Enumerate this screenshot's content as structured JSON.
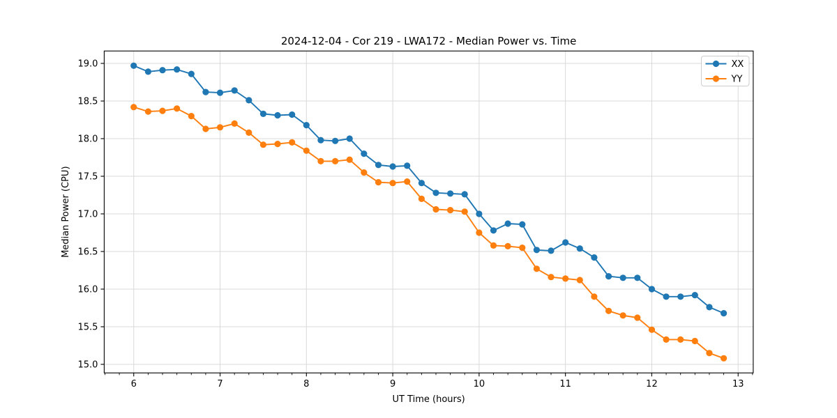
{
  "chart_data": {
    "type": "line",
    "title": "2024-12-04 - Cor 219 - LWA172 - Median Power vs. Time",
    "xlabel": "UT Time (hours)",
    "ylabel": "Median Power (CPU)",
    "grid": true,
    "legend": {
      "location": "upper right",
      "entries": [
        "XX",
        "YY"
      ]
    },
    "xlim": [
      5.658,
      13.175
    ],
    "ylim": [
      14.886,
      19.165
    ],
    "x_ticks": {
      "values": [
        6,
        7,
        8,
        9,
        10,
        11,
        12,
        13
      ],
      "labels": [
        "6",
        "7",
        "8",
        "9",
        "10",
        "11",
        "12",
        "13"
      ],
      "minor_step": 0.1667
    },
    "y_ticks": {
      "values": [
        15.0,
        15.5,
        16.0,
        16.5,
        17.0,
        17.5,
        18.0,
        18.5,
        19.0
      ],
      "labels": [
        "15.0",
        "15.5",
        "16.0",
        "16.5",
        "17.0",
        "17.5",
        "18.0",
        "18.5",
        "19.0"
      ]
    },
    "x": [
      6,
      6.1667,
      6.3333,
      6.5,
      6.6667,
      6.8333,
      7,
      7.1667,
      7.3333,
      7.5,
      7.6667,
      7.8333,
      8,
      8.1667,
      8.3333,
      8.5,
      8.6667,
      8.8333,
      9,
      9.1667,
      9.3333,
      9.5,
      9.6667,
      9.8333,
      10,
      10.1667,
      10.3333,
      10.5,
      10.6667,
      10.8333,
      11,
      11.1667,
      11.3333,
      11.5,
      11.6667,
      11.8333,
      12,
      12.1667,
      12.3333,
      12.5,
      12.6667,
      12.8333
    ],
    "series": [
      {
        "name": "XX",
        "color": "#1f77b4",
        "values": [
          18.97,
          18.89,
          18.91,
          18.92,
          18.86,
          18.62,
          18.61,
          18.64,
          18.51,
          18.33,
          18.31,
          18.32,
          18.18,
          17.98,
          17.97,
          18.0,
          17.8,
          17.65,
          17.63,
          17.64,
          17.41,
          17.28,
          17.27,
          17.26,
          17.0,
          16.78,
          16.87,
          16.86,
          16.52,
          16.51,
          16.62,
          16.54,
          16.42,
          16.17,
          16.15,
          16.15,
          16.0,
          15.9,
          15.9,
          15.92,
          15.76,
          15.68
        ]
      },
      {
        "name": "YY",
        "color": "#ff7f0e",
        "values": [
          18.42,
          18.36,
          18.37,
          18.4,
          18.3,
          18.13,
          18.15,
          18.2,
          18.08,
          17.92,
          17.93,
          17.95,
          17.84,
          17.7,
          17.7,
          17.72,
          17.55,
          17.42,
          17.41,
          17.43,
          17.2,
          17.06,
          17.05,
          17.03,
          16.75,
          16.58,
          16.57,
          16.55,
          16.27,
          16.16,
          16.14,
          16.12,
          15.9,
          15.71,
          15.65,
          15.62,
          15.46,
          15.33,
          15.33,
          15.31,
          15.15,
          15.08
        ]
      }
    ],
    "marker": "o"
  },
  "colors": {
    "background": "#ffffff",
    "grid": "#d9d9d9",
    "spine": "#000000",
    "text": "#000000",
    "series_xx": "#1f77b4",
    "series_yy": "#ff7f0e"
  }
}
